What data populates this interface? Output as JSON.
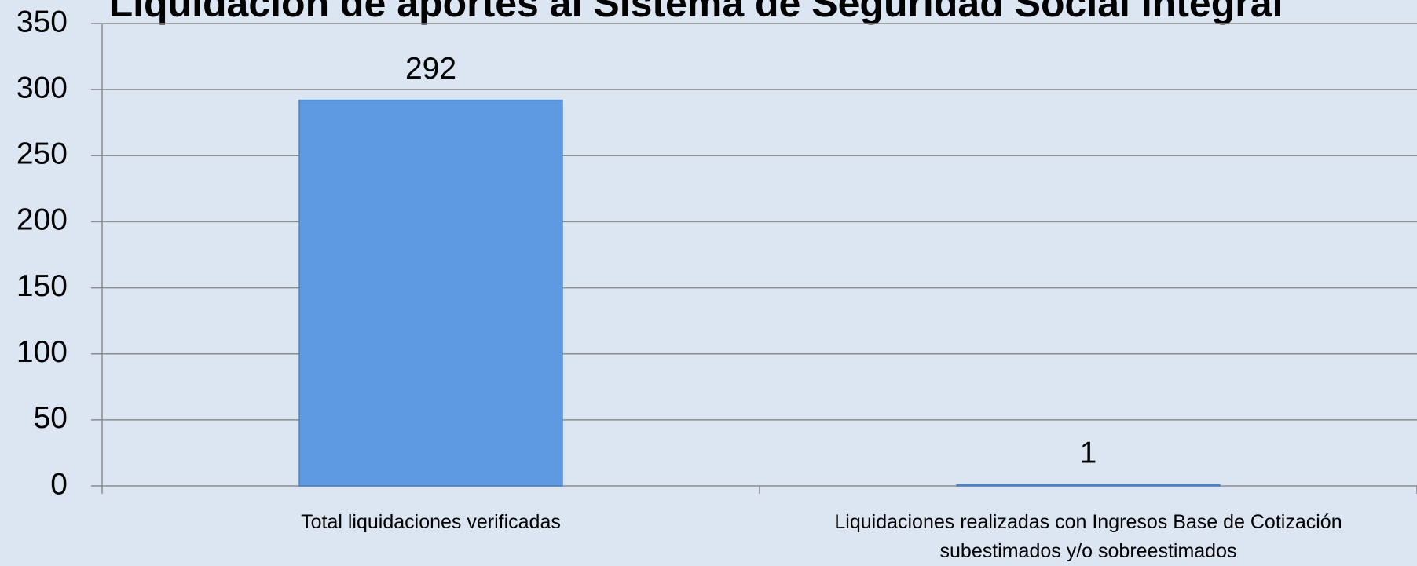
{
  "chart_data": {
    "type": "bar",
    "title": "Liquidación de aportes al Sistema de Seguridad Social Integral",
    "categories": [
      "Total liquidaciones verificadas",
      "Liquidaciones realizadas con Ingresos Base de Cotización subestimados y/o sobreestimados"
    ],
    "values": [
      292,
      1
    ],
    "color": "#5e9ae2",
    "ylim": [
      0,
      350
    ],
    "yticks": [
      0,
      50,
      100,
      150,
      200,
      250,
      300,
      350
    ],
    "grid": true
  }
}
